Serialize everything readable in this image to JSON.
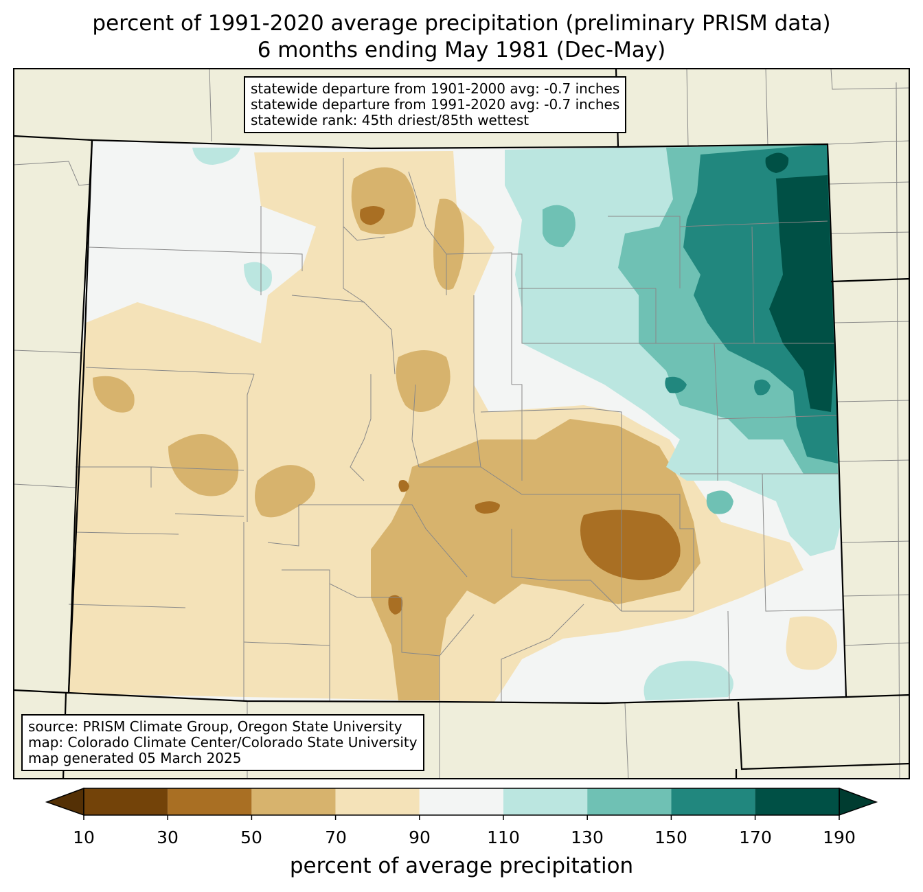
{
  "title": {
    "line1": "percent of 1991-2020 average precipitation (preliminary PRISM data)",
    "line2": "6 months ending May 1981 (Dec-May)"
  },
  "stats": {
    "line1": "statewide departure from 1901-2000 avg: -0.7 inches",
    "line2": "statewide departure from 1991-2020 avg: -0.7 inches",
    "line3": "statewide rank: 45th driest/85th wettest"
  },
  "source": {
    "line1": "source: PRISM Climate Group, Oregon State University",
    "line2": "map: Colorado Climate Center/Colorado State University",
    "line3": "map generated 05 March 2025"
  },
  "colors": {
    "background_land": "#efeedb",
    "c10_30": "#734309",
    "c30_50": "#a96f23",
    "c50_70": "#d7b36d",
    "c70_90": "#f4e2b8",
    "c90_110": "#f3f5f4",
    "c110_130": "#bbe6e0",
    "c130_150": "#6fc1b4",
    "c150_170": "#21877e",
    "c170_190": "#005045",
    "under": "#543005",
    "over": "#003c30"
  },
  "colorbar": {
    "ticks": [
      "10",
      "30",
      "50",
      "70",
      "90",
      "110",
      "130",
      "150",
      "170",
      "190"
    ],
    "label": "percent of average precipitation"
  }
}
